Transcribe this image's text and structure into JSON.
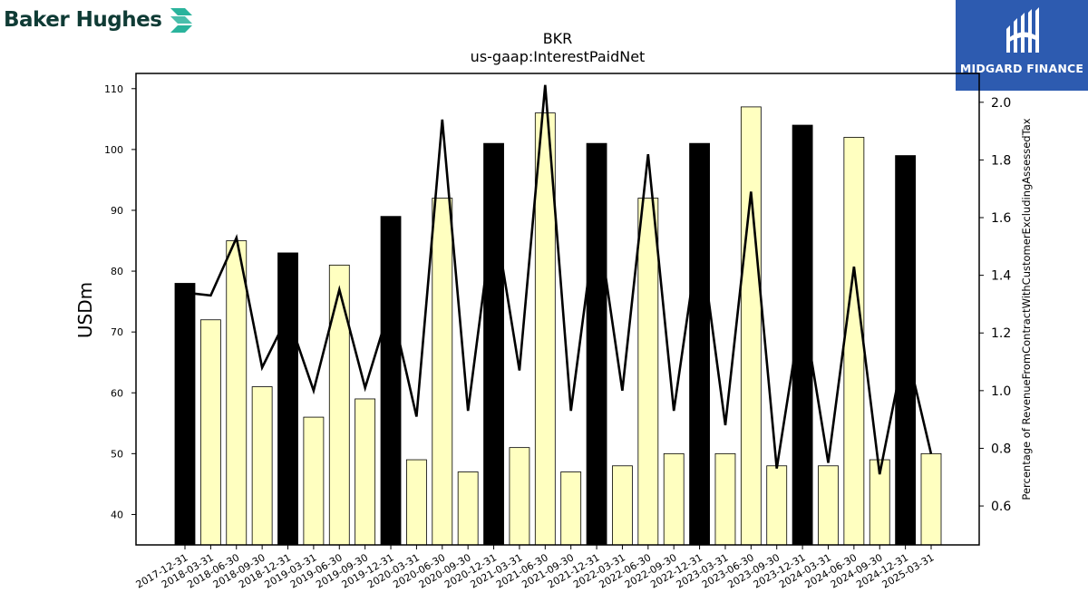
{
  "brand": {
    "left_name": "Baker Hughes",
    "right_name": "MIDGARD FINANCE",
    "left_color": "#0f3b35",
    "left_accent": "#2ab39c",
    "right_bg": "#2d5bb0"
  },
  "chart_data": {
    "type": "bar",
    "title": "BKR",
    "subtitle": "us-gaap:InterestPaidNet",
    "ylabel": "USDm",
    "y2label": "Percentage of RevenueFromContractWithCustomerExcludingAssessedTax",
    "ylim": [
      35,
      112.5
    ],
    "y2lim": [
      0.465,
      2.1
    ],
    "yticks": [
      40,
      50,
      60,
      70,
      80,
      90,
      100,
      110
    ],
    "y2ticks": [
      0.6,
      0.8,
      1.0,
      1.2,
      1.4,
      1.6,
      1.8,
      2.0
    ],
    "y2tick_labels": [
      "0.6",
      "0.8",
      "1.0",
      "1.2",
      "1.4",
      "1.6",
      "1.8",
      "2.0"
    ],
    "categories": [
      "2017-12-31",
      "2018-03-31",
      "2018-06-30",
      "2018-09-30",
      "2018-12-31",
      "2019-03-31",
      "2019-06-30",
      "2019-09-30",
      "2019-12-31",
      "2020-03-31",
      "2020-06-30",
      "2020-09-30",
      "2020-12-31",
      "2021-03-31",
      "2021-06-30",
      "2021-09-30",
      "2021-12-31",
      "2022-03-31",
      "2022-06-30",
      "2022-09-30",
      "2022-12-31",
      "2023-03-31",
      "2023-06-30",
      "2023-09-30",
      "2023-12-31",
      "2024-03-31",
      "2024-06-30",
      "2024-09-30",
      "2024-12-31",
      "2025-03-31"
    ],
    "series": [
      {
        "kind": "bar",
        "axis": "left",
        "values": [
          78,
          72,
          85,
          61,
          83,
          56,
          81,
          59,
          89,
          49,
          92,
          47,
          101,
          51,
          106,
          47,
          101,
          48,
          92,
          50,
          101,
          50,
          107,
          48,
          104,
          48,
          102,
          49,
          99,
          50
        ],
        "highlight": [
          true,
          false,
          false,
          false,
          true,
          false,
          false,
          false,
          true,
          false,
          false,
          false,
          true,
          false,
          false,
          false,
          true,
          false,
          false,
          false,
          true,
          false,
          false,
          false,
          true,
          false,
          false,
          false,
          true,
          false
        ],
        "color": "#ffffc0",
        "highlight_color": "#000000"
      },
      {
        "kind": "line",
        "axis": "right",
        "values": [
          1.34,
          1.33,
          1.53,
          1.08,
          1.26,
          1.0,
          1.35,
          1.01,
          1.3,
          0.91,
          1.94,
          0.93,
          1.62,
          1.07,
          2.06,
          0.93,
          1.61,
          1.0,
          1.82,
          0.93,
          1.55,
          0.88,
          1.69,
          0.73,
          1.3,
          0.75,
          1.43,
          0.71,
          1.16,
          0.78
        ],
        "color": "#000000"
      }
    ]
  }
}
